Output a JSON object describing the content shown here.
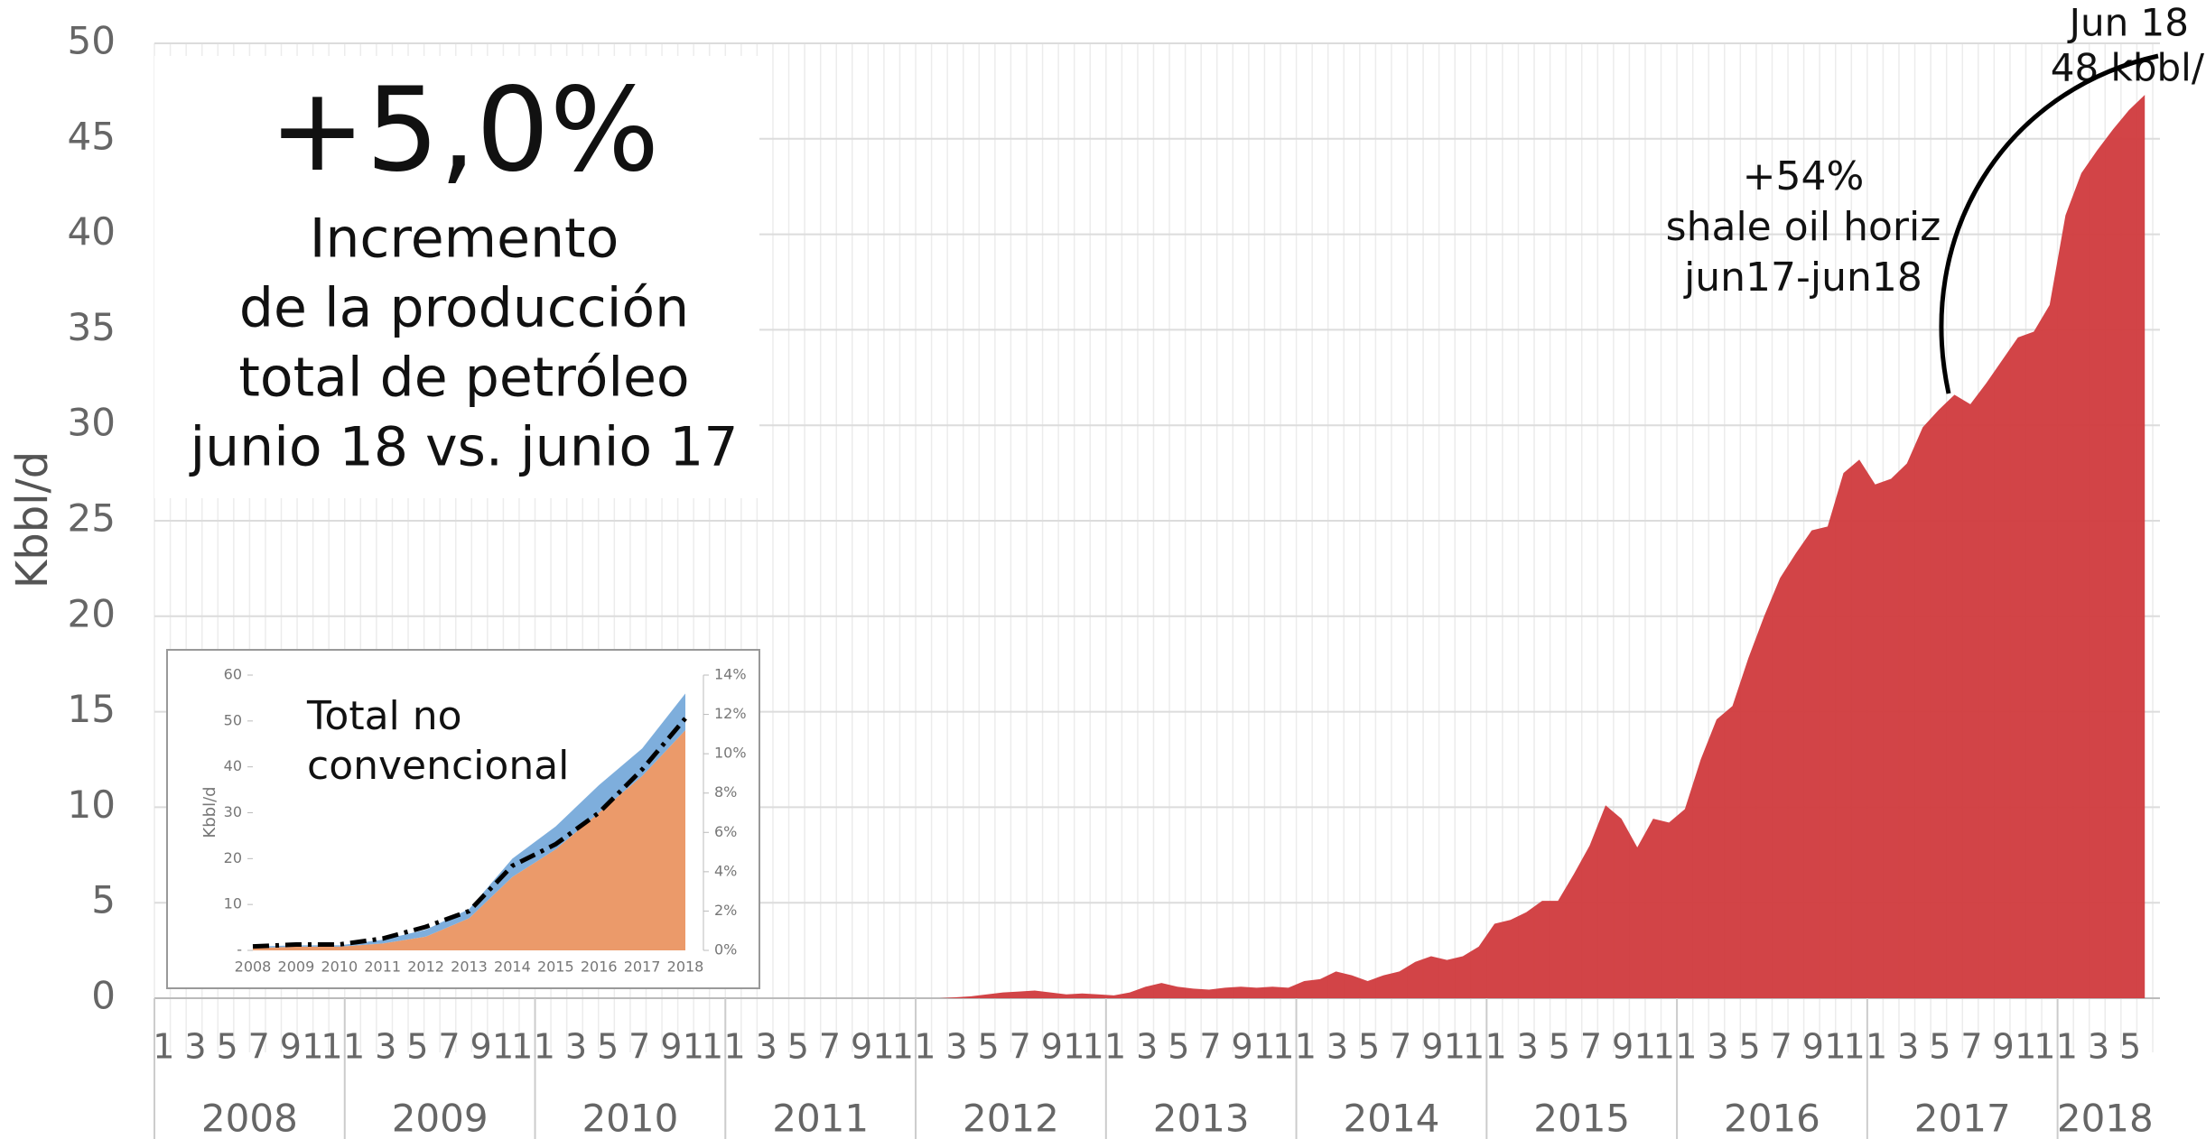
{
  "chart_data": [
    {
      "type": "area",
      "y_label": "Kbbl/d",
      "headline": "+5,0%",
      "headline_note": [
        "Incremento",
        "de la producción",
        "total de petróleo",
        "junio 18 vs. junio 17"
      ],
      "annotations": [
        {
          "lines": [
            "+54%",
            "shale oil horiz",
            "jun17-jun18"
          ]
        },
        {
          "lines": [
            "Jun 18",
            "48 kbbl/"
          ]
        }
      ],
      "categories": [
        "1",
        null,
        "3",
        null,
        "5",
        null,
        "7",
        null,
        "9",
        null,
        "11",
        null,
        "1",
        null,
        "3",
        null,
        "5",
        null,
        "7",
        null,
        "9",
        null,
        "11",
        null,
        "1",
        null,
        "3",
        null,
        "5",
        null,
        "7",
        null,
        "9",
        null,
        "11",
        null,
        "1",
        null,
        "3",
        null,
        "5",
        null,
        "7",
        null,
        "9",
        null,
        "11",
        null,
        "1",
        null,
        "3",
        null,
        "5",
        null,
        "7",
        null,
        "9",
        null,
        "11",
        null,
        "1",
        null,
        "3",
        null,
        "5",
        null,
        "7",
        null,
        "9",
        null,
        "11",
        null,
        "1",
        null,
        "3",
        null,
        "5",
        null,
        "7",
        null,
        "9",
        null,
        "11",
        null,
        "1",
        null,
        "3",
        null,
        "5",
        null,
        "7",
        null,
        "9",
        null,
        "11",
        null,
        "1",
        null,
        "3",
        null,
        "5",
        null,
        "7",
        null,
        "9",
        null,
        "11",
        null,
        "1",
        null,
        "3",
        null,
        "5",
        null,
        "7",
        null,
        "9",
        null,
        "11",
        null,
        "1",
        null,
        "3",
        null,
        "5",
        null
      ],
      "years": [
        "2008",
        "2009",
        "2010",
        "2011",
        "2012",
        "2013",
        "2014",
        "2015",
        "2016",
        "2017",
        "2018"
      ],
      "series": [
        {
          "color": "#d03a3d",
          "values": [
            0,
            0,
            0,
            0,
            0,
            0,
            0,
            0,
            0,
            0,
            0,
            0,
            0,
            0,
            0,
            0,
            0,
            0,
            0,
            0,
            0,
            0,
            0,
            0,
            0,
            0,
            0,
            0,
            0,
            0,
            0,
            0,
            0,
            0,
            0,
            0,
            0,
            0,
            0,
            0,
            0,
            0,
            0,
            0,
            0,
            0,
            0,
            0,
            0,
            0,
            0.05,
            0.1,
            0.2,
            0.3,
            0.35,
            0.4,
            0.3,
            0.2,
            0.25,
            0.2,
            0.15,
            0.3,
            0.6,
            0.8,
            0.6,
            0.5,
            0.45,
            0.55,
            0.6,
            0.55,
            0.6,
            0.55,
            0.9,
            1.0,
            1.4,
            1.2,
            0.9,
            1.2,
            1.4,
            1.9,
            2.2,
            2.0,
            2.2,
            2.7,
            3.9,
            4.1,
            4.5,
            5.1,
            5.1,
            6.5,
            8.0,
            10.1,
            9.4,
            7.9,
            9.4,
            9.2,
            9.9,
            12.5,
            14.6,
            15.3,
            17.8,
            20.0,
            22.0,
            23.3,
            24.5,
            24.7,
            27.5,
            28.2,
            26.9,
            27.2,
            28.0,
            29.9,
            30.8,
            31.6,
            31.1,
            32.2,
            33.4,
            34.6,
            34.9,
            36.3,
            41.0,
            43.2,
            44.4,
            45.5,
            46.5,
            47.3
          ]
        }
      ],
      "ylim": [
        0,
        50
      ],
      "yticks": [
        0,
        5,
        10,
        15,
        20,
        25,
        30,
        35,
        40,
        45,
        50
      ],
      "grid": true
    },
    {
      "type": "area",
      "stacked": true,
      "title": [
        "Total no",
        "convencional"
      ],
      "y_label": "Kbbl/d",
      "categories": [
        "2008",
        "2009",
        "2010",
        "2011",
        "2012",
        "2013",
        "2014",
        "2015",
        "2016",
        "2017",
        "2018"
      ],
      "series": [
        {
          "color": "#eb9a6a",
          "values": [
            0.5,
            0.8,
            0.8,
            1.5,
            3,
            7,
            16,
            22,
            30,
            38,
            48
          ]
        },
        {
          "color": "#7eaedc",
          "values": [
            0.3,
            0.3,
            0.3,
            0.8,
            1.5,
            2,
            4,
            5,
            6,
            6,
            8
          ]
        },
        {
          "color": "#000000",
          "axis": "y2",
          "style": "dashdot",
          "values": [
            0.2,
            0.3,
            0.3,
            0.6,
            1.2,
            2.0,
            4.3,
            5.4,
            7.0,
            9.2,
            11.8
          ]
        }
      ],
      "ylim": [
        0,
        60
      ],
      "yticks": [
        {
          "value": 0,
          "label": "-"
        },
        10,
        20,
        30,
        40,
        50,
        60
      ],
      "y2lim": [
        0,
        14
      ],
      "y2ticks": [
        {
          "value": 0,
          "label": "0%"
        },
        {
          "value": 2,
          "label": "2%"
        },
        {
          "value": 4,
          "label": "4%"
        },
        {
          "value": 6,
          "label": "6%"
        },
        {
          "value": 8,
          "label": "8%"
        },
        {
          "value": 10,
          "label": "10%"
        },
        {
          "value": 12,
          "label": "12%"
        },
        {
          "value": 14,
          "label": "14%"
        }
      ]
    }
  ]
}
